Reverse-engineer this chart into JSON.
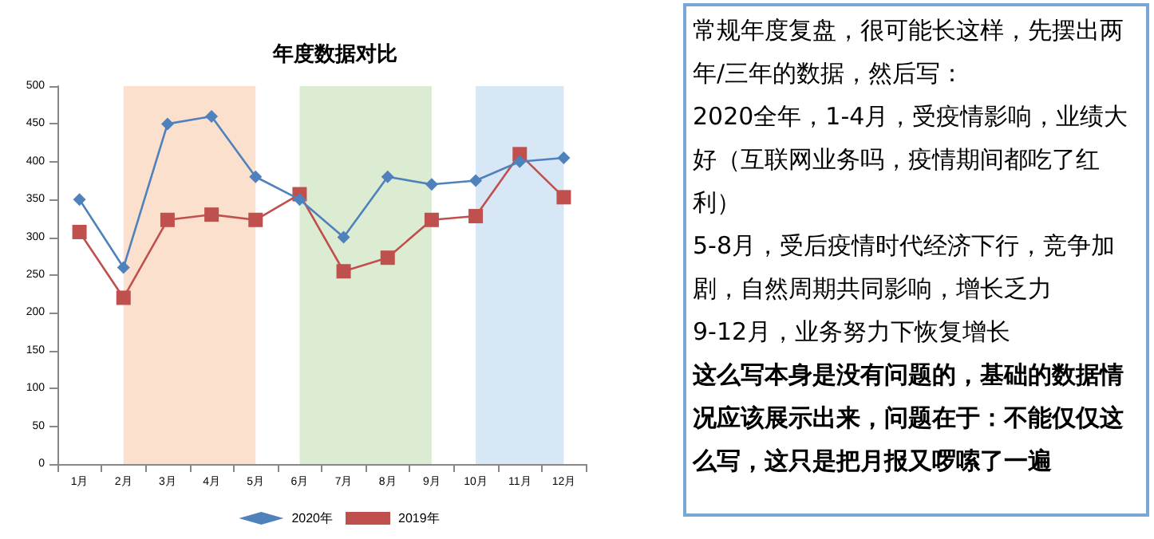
{
  "chart_data": [
    {
      "type": "line",
      "title": "年度数据对比",
      "categories": [
        "1月",
        "2月",
        "3月",
        "4月",
        "5月",
        "6月",
        "7月",
        "8月",
        "9月",
        "10月",
        "11月",
        "12月"
      ],
      "series": [
        {
          "name": "2020年",
          "color": "#4f81bd",
          "marker": "diamond",
          "values": [
            350,
            260,
            450,
            460,
            380,
            350,
            300,
            380,
            370,
            375,
            400,
            405
          ]
        },
        {
          "name": "2019年",
          "color": "#c0504d",
          "marker": "square",
          "values": [
            307,
            220,
            323,
            330,
            323,
            357,
            255,
            273,
            323,
            328,
            410,
            353
          ]
        }
      ],
      "ylim": [
        0,
        500
      ],
      "yticks": [
        0,
        50,
        100,
        150,
        200,
        250,
        300,
        350,
        400,
        450,
        500
      ],
      "grid": false,
      "legend": "bottom",
      "bands": [
        {
          "axis": "x",
          "from": "2月",
          "to": "5月",
          "color": "#f8cbad"
        },
        {
          "axis": "x",
          "from": "6月",
          "to": "9月",
          "color": "#c5e0b4"
        },
        {
          "axis": "x",
          "from": "10月",
          "to": "12月",
          "color": "#bdd7ee"
        }
      ]
    },
    {
      "type": "other",
      "annotations": [
        "常规年度复盘，很可能长这样，先摆出两年/三年的数据，然后写：",
        "2020全年，1-4月，受疫情影响，业绩大好（互联网业务吗，疫情期间都吃了红利）",
        "5-8月，受后疫情时代经济下行，竞争加剧，自然周期共同影响，增长乏力",
        "9-12月，业务努力下恢复增长",
        "这么写本身是没有问题的，基础的数据情况应该展示出来，问题在于：不能仅仅这么写，这只是把月报又啰嗦了一遍"
      ]
    }
  ]
}
